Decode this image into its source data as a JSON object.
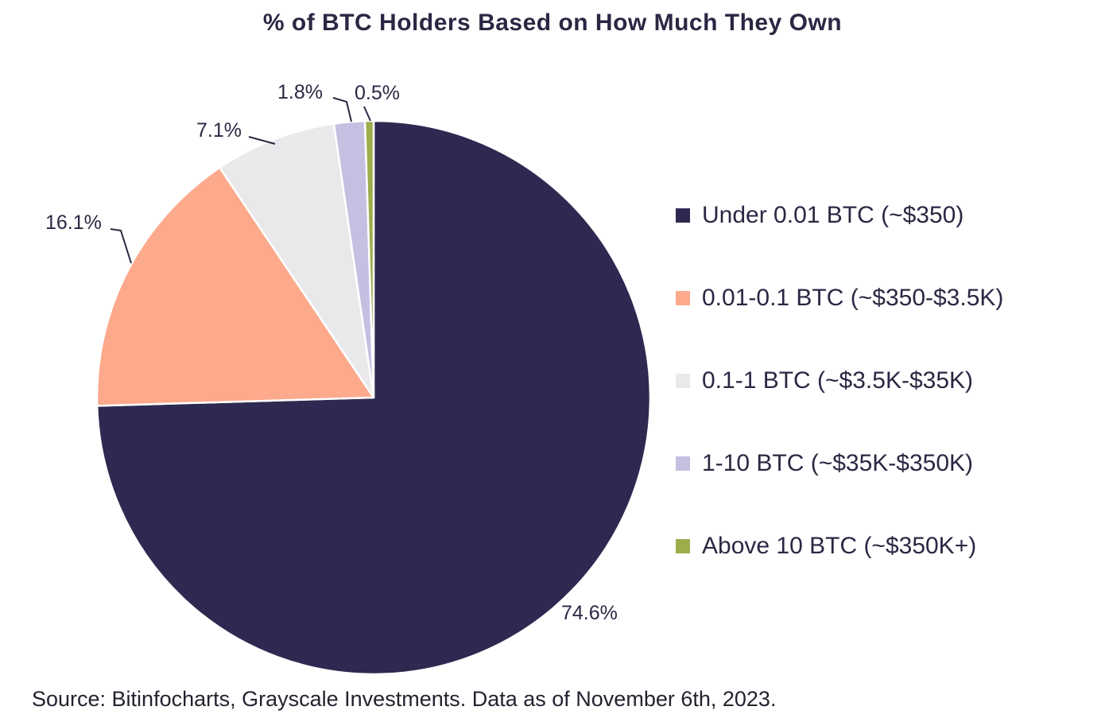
{
  "title": "% of BTC Holders Based on How Much They Own",
  "source_note": "Source: Bitinfocharts, Grayscale Investments. Data as of November 6th, 2023.",
  "colors": {
    "text": "#2b2743",
    "background": "#ffffff",
    "leader_line": "#2b2743"
  },
  "chart_data": {
    "type": "pie",
    "title": "% of BTC Holders Based on How Much They Own",
    "direction": "clockwise",
    "start_angle_deg": -90,
    "legend_position": "right",
    "slices": [
      {
        "label": "Under 0.01 BTC (~$350)",
        "value": 74.6,
        "pct_label": "74.6%",
        "color": "#2e2950"
      },
      {
        "label": "0.01-0.1 BTC (~$350-$3.5K)",
        "value": 16.1,
        "pct_label": "16.1%",
        "color": "#fca98c"
      },
      {
        "label": "0.1-1 BTC (~$3.5K-$35K)",
        "value": 7.1,
        "pct_label": "7.1%",
        "color": "#e9e9ec"
      },
      {
        "label": "1-10 BTC (~$35K-$350K)",
        "value": 1.8,
        "pct_label": "1.8%",
        "color": "#c5c0e2"
      },
      {
        "label": "Above 10 BTC (~$350K+)",
        "value": 0.5,
        "pct_label": "0.5%",
        "color": "#9cad4c"
      }
    ]
  }
}
